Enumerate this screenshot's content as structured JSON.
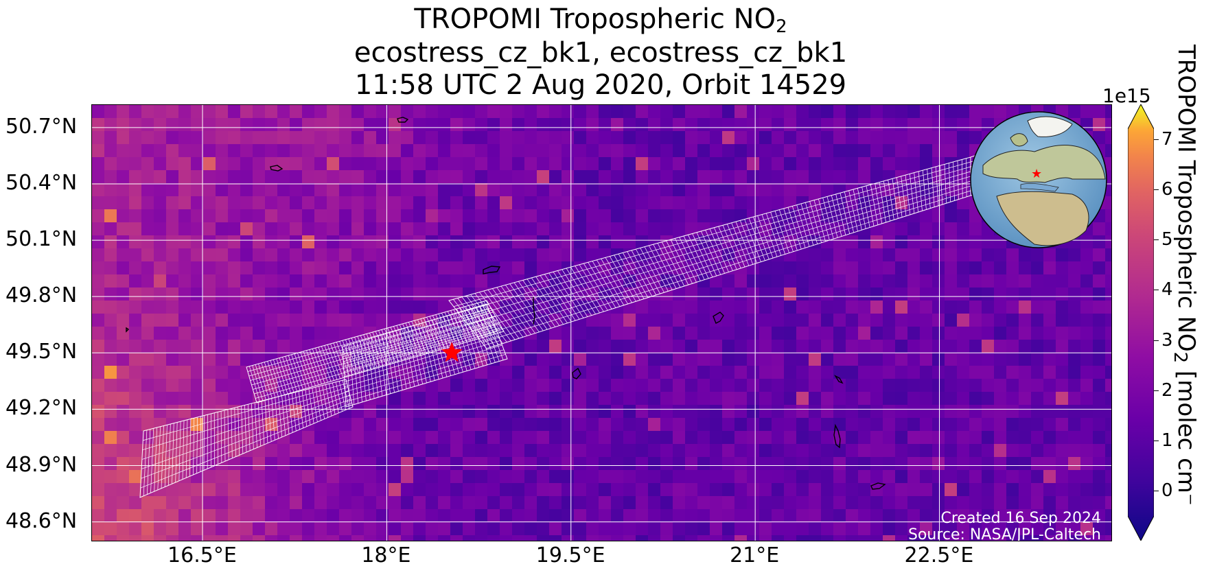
{
  "title": {
    "line1_main": "TROPOMI Tropospheric NO",
    "line1_sub": "2",
    "line2": "ecostress_cz_bk1, ecostress_cz_bk1",
    "line3": "11:58 UTC 2 Aug 2020, Orbit 14529"
  },
  "map": {
    "lon_range": [
      15.6,
      23.9
    ],
    "lat_range": [
      48.5,
      50.82
    ],
    "lat_ticks": [
      {
        "value": 50.7,
        "label": "50.7°N"
      },
      {
        "value": 50.4,
        "label": "50.4°N"
      },
      {
        "value": 50.1,
        "label": "50.1°N"
      },
      {
        "value": 49.8,
        "label": "49.8°N"
      },
      {
        "value": 49.5,
        "label": "49.5°N"
      },
      {
        "value": 49.2,
        "label": "49.2°N"
      },
      {
        "value": 48.9,
        "label": "48.9°N"
      },
      {
        "value": 48.6,
        "label": "48.6°N"
      }
    ],
    "lon_ticks": [
      {
        "value": 16.5,
        "label": "16.5°E"
      },
      {
        "value": 18.0,
        "label": "18°E"
      },
      {
        "value": 19.5,
        "label": "19.5°E"
      },
      {
        "value": 21.0,
        "label": "21°E"
      },
      {
        "value": 22.5,
        "label": "22.5°E"
      }
    ],
    "target_marker": {
      "lon": 18.53,
      "lat": 49.5,
      "color": "#ff0000"
    },
    "grid_color": "#ffffff",
    "swath_color": "#ffffff",
    "credit_line1": "Created 16 Sep 2024",
    "credit_line2": "Source: NASA/JPL-Caltech"
  },
  "colorbar": {
    "colormap": "plasma",
    "range": [
      -0.5,
      7.2
    ],
    "exponent": "1e15",
    "ticks": [
      "0",
      "1",
      "2",
      "3",
      "4",
      "5",
      "6",
      "7"
    ],
    "label_main": "TROPOMI Tropospheric NO",
    "label_sub": "2",
    "label_rest": " [molec cm",
    "label_tail": "⁻"
  },
  "globe_inset": {
    "icon": "globe-europe-icon",
    "marker_color": "#ff0000"
  }
}
